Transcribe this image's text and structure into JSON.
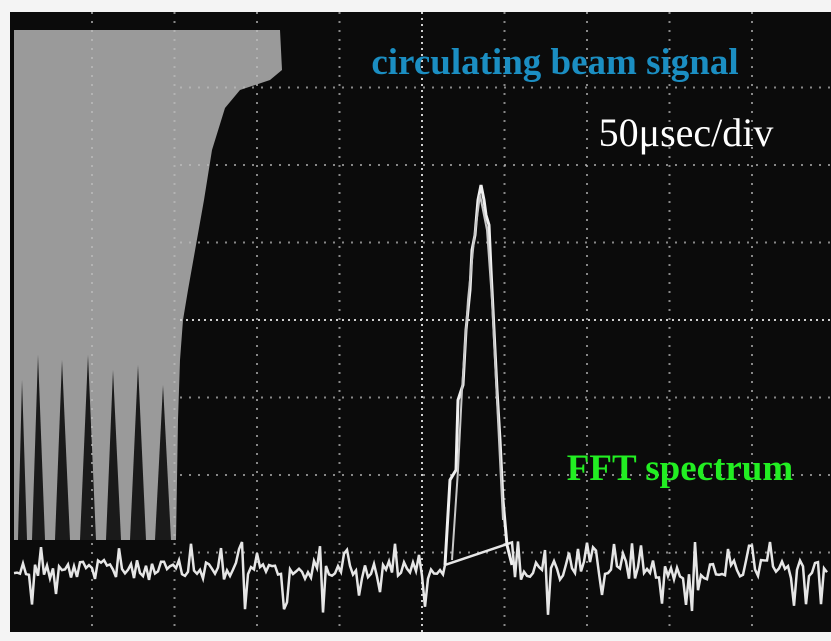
{
  "labels": {
    "beam_signal": "circulating beam signal",
    "time_scale": "50μsec/div",
    "fft": "FFT spectrum"
  }
}
